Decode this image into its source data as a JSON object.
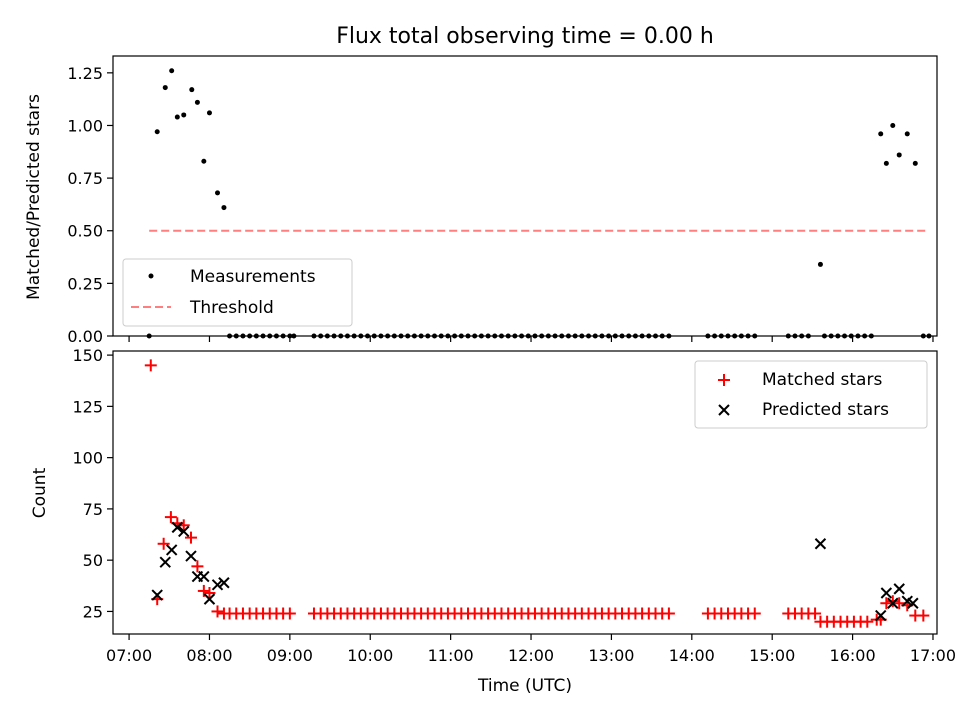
{
  "chart_data": [
    {
      "type": "scatter",
      "title": "Flux total observing time = 0.00 h",
      "xlabel": "",
      "ylabel": "Matched/Predicted stars",
      "xlim": [
        6.8,
        17.05
      ],
      "ylim": [
        0,
        1.33
      ],
      "yticks": [
        0.0,
        0.25,
        0.5,
        0.75,
        1.0,
        1.25
      ],
      "ytick_labels": [
        "0.00",
        "0.25",
        "0.50",
        "0.75",
        "1.00",
        "1.25"
      ],
      "legend": {
        "position": "lower-left",
        "entries": [
          "Measurements",
          "Threshold"
        ]
      },
      "series": [
        {
          "name": "Measurements",
          "marker": "dot",
          "color": "#000000",
          "x": [
            7.25,
            7.35,
            7.45,
            7.53,
            7.6,
            7.68,
            7.78,
            7.85,
            7.93,
            8.0,
            8.1,
            8.18
          ],
          "y": [
            0.0,
            0.97,
            1.18,
            1.26,
            1.04,
            1.05,
            1.17,
            1.11,
            0.83,
            1.06,
            0.68,
            0.61
          ]
        },
        {
          "name": "Measurements",
          "marker": "dot",
          "color": "#000000",
          "x": [
            15.6,
            16.35,
            16.42,
            16.5,
            16.58,
            16.68,
            16.78,
            16.88,
            16.95
          ],
          "y": [
            0.34,
            0.96,
            0.82,
            1.0,
            0.86,
            0.96,
            0.82,
            0.0,
            0.0
          ]
        },
        {
          "name": "Threshold",
          "style": "dashed",
          "color": "#ff7f7f",
          "x": [
            7.25,
            16.95
          ],
          "y": [
            0.5,
            0.5
          ]
        }
      ],
      "zero_runs": [
        [
          8.25,
          8.95,
          0.0833
        ],
        [
          9.0,
          9.05,
          0.05
        ],
        [
          9.3,
          13.75,
          0.0833
        ],
        [
          14.2,
          14.8,
          0.0833
        ],
        [
          15.2,
          15.5,
          0.0833
        ],
        [
          15.65,
          16.25,
          0.0833
        ]
      ]
    },
    {
      "type": "scatter",
      "title": "",
      "xlabel": "Time (UTC)",
      "ylabel": "Count",
      "xlim": [
        6.8,
        17.05
      ],
      "ylim": [
        14,
        152
      ],
      "yticks": [
        25,
        50,
        75,
        100,
        125,
        150
      ],
      "ytick_labels": [
        "25",
        "50",
        "75",
        "100",
        "125",
        "150"
      ],
      "xticks": [
        7,
        8,
        9,
        10,
        11,
        12,
        13,
        14,
        15,
        16,
        17
      ],
      "xtick_labels": [
        "07:00",
        "08:00",
        "09:00",
        "10:00",
        "11:00",
        "12:00",
        "13:00",
        "14:00",
        "15:00",
        "16:00",
        "17:00"
      ],
      "legend": {
        "position": "top-right",
        "entries": [
          "Matched stars",
          "Predicted stars"
        ]
      },
      "series": [
        {
          "name": "Matched stars",
          "marker": "plus",
          "color": "#ff0000",
          "x": [
            7.27,
            7.35,
            7.43,
            7.52,
            7.6,
            7.68,
            7.77,
            7.85,
            7.93,
            8.0,
            8.1,
            8.18,
            16.3,
            16.35,
            16.42,
            16.5,
            16.58,
            16.68,
            16.78,
            16.88
          ],
          "y": [
            145,
            31,
            58,
            71,
            68,
            67,
            61,
            47,
            35,
            34,
            25,
            24,
            21,
            21,
            29,
            30,
            29,
            28,
            23,
            23
          ]
        },
        {
          "name": "Predicted stars",
          "marker": "x",
          "color": "#000000",
          "x": [
            7.35,
            7.45,
            7.53,
            7.6,
            7.68,
            7.77,
            7.85,
            7.93,
            8.0,
            8.1,
            8.18,
            15.6,
            16.35,
            16.42,
            16.5,
            16.58,
            16.68,
            16.75
          ],
          "y": [
            33,
            49,
            55,
            66,
            64,
            52,
            42,
            42,
            31,
            38,
            39,
            58,
            23,
            34,
            29,
            36,
            30,
            29
          ]
        }
      ],
      "flat_runs": [
        [
          8.25,
          9.0,
          0.0833,
          24
        ],
        [
          9.3,
          13.75,
          0.0833,
          24
        ],
        [
          14.2,
          14.8,
          0.0833,
          24
        ],
        [
          15.2,
          15.55,
          0.0833,
          24
        ],
        [
          15.6,
          16.25,
          0.0833,
          20
        ]
      ]
    }
  ]
}
